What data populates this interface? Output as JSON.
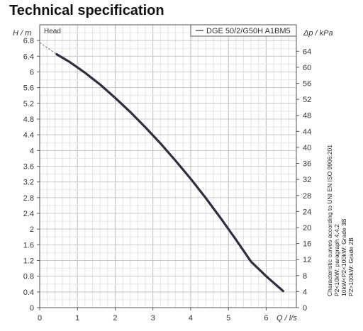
{
  "page": {
    "title": "Technical specification"
  },
  "chart_data": {
    "type": "line",
    "title": "",
    "xlabel": "Q / l/s",
    "ylabel_left": "H / m",
    "ylabel_right": "Δp / kPa",
    "xlim": [
      0,
      6.8
    ],
    "ylim": [
      0,
      7.2
    ],
    "ylim_right": [
      0,
      70.6
    ],
    "x_ticks": [
      "0",
      "1",
      "2",
      "3",
      "4",
      "5",
      "6"
    ],
    "y_ticks": [
      "0",
      "0.4",
      "0.8",
      "1.2",
      "1.6",
      "2",
      "2.4",
      "2.8",
      "3.2",
      "3.6",
      "4",
      "4.4",
      "4.8",
      "5.2",
      "5.6",
      "6",
      "6.4",
      "6.8"
    ],
    "y_right_ticks": [
      "0",
      "4",
      "8",
      "12",
      "16",
      "20",
      "24",
      "28",
      "32",
      "36",
      "40",
      "44",
      "48",
      "52",
      "56",
      "60",
      "64"
    ],
    "grid": true,
    "legend_position": "top-right",
    "series_name_label": "Head",
    "series": [
      {
        "name": "DGE 50/2/G50H A1BM5",
        "color": "#2e2e3e",
        "x": [
          0.45,
          0.8,
          1.2,
          1.6,
          2.0,
          2.4,
          2.8,
          3.2,
          3.6,
          4.0,
          4.4,
          4.8,
          5.2,
          5.6,
          6.0,
          6.45
        ],
        "y": [
          6.45,
          6.25,
          5.98,
          5.68,
          5.34,
          4.98,
          4.59,
          4.18,
          3.74,
          3.28,
          2.79,
          2.27,
          1.73,
          1.17,
          0.8,
          0.42
        ]
      }
    ],
    "dashed_extension": {
      "x": [
        0.0,
        0.45
      ],
      "y": [
        6.75,
        6.45
      ]
    },
    "side_note": [
      "Characteristic curves according to UNI EN ISO 9906:201",
      "P2<10kW: paragraph 4.4.2",
      "10kW<P2<100kW: Grade 3B",
      "P2>100kW: Grade 2B"
    ]
  }
}
